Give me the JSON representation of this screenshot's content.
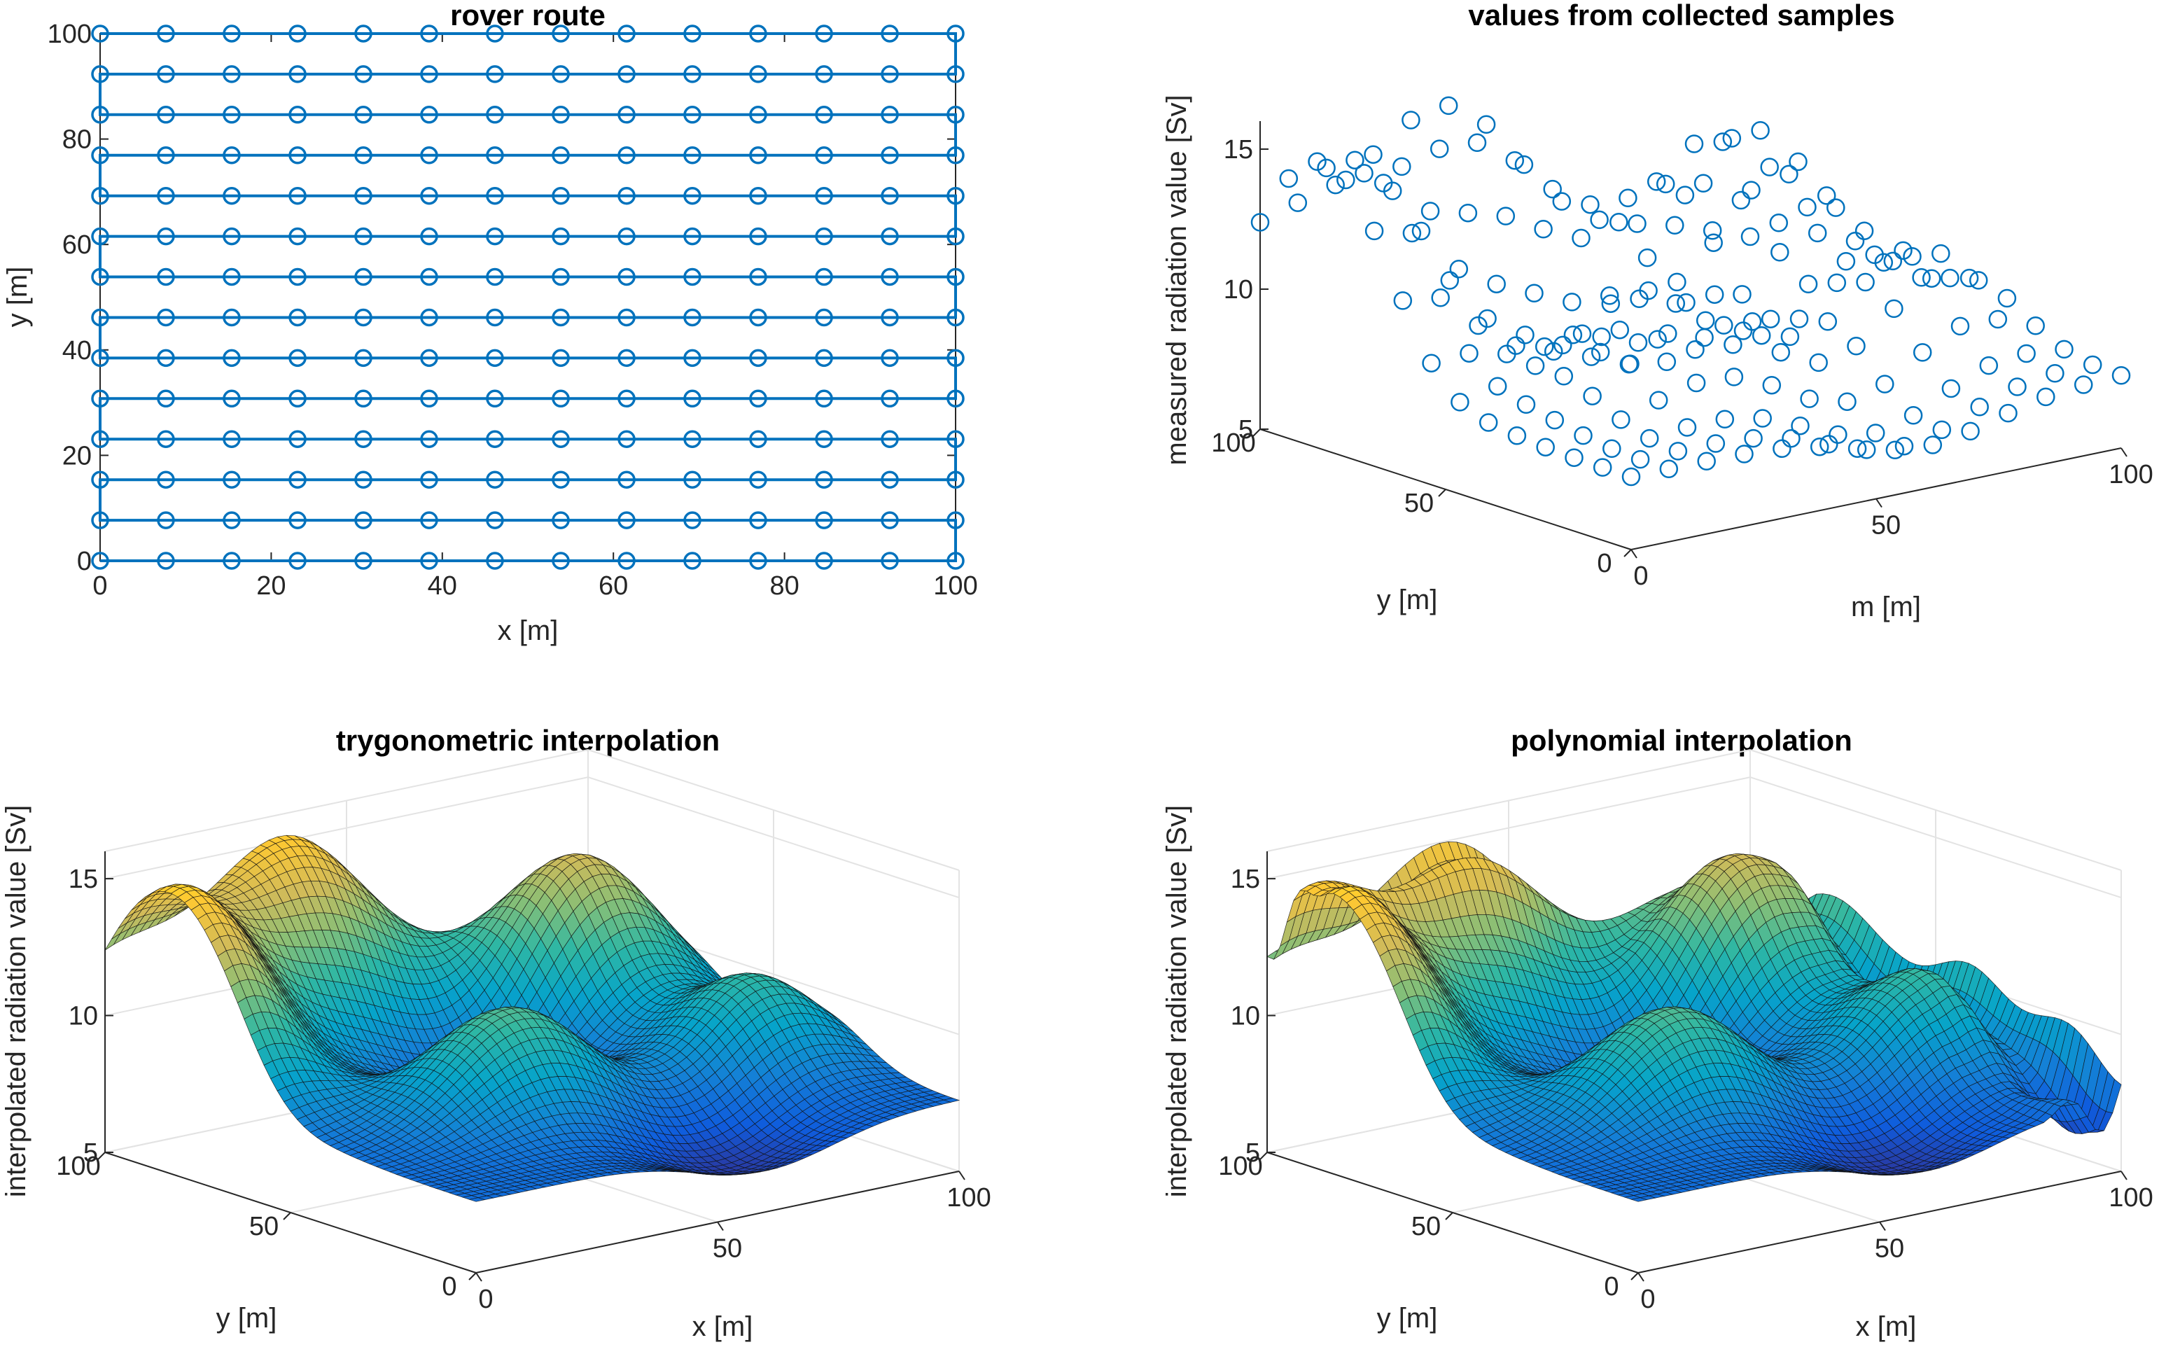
{
  "chart_data": [
    {
      "id": "rover-route",
      "type": "line",
      "title": "rover route",
      "xlabel": "x [m]",
      "ylabel": "y [m]",
      "xlim": [
        0,
        100
      ],
      "ylim": [
        0,
        100
      ],
      "xticks": [
        0,
        20,
        40,
        60,
        80,
        100
      ],
      "yticks": [
        0,
        20,
        40,
        60,
        80,
        100
      ],
      "grid": false,
      "marker": "circle",
      "color": "#0072BD",
      "series": [
        {
          "x": [
            0,
            7.69,
            15.38,
            23.08,
            30.77,
            38.46,
            46.15,
            53.85,
            61.54,
            69.23,
            76.92,
            84.62,
            92.31,
            100
          ],
          "y_rows": [
            0,
            7.69,
            15.38,
            23.08,
            30.77,
            38.46,
            46.15,
            53.85,
            61.54,
            69.23,
            76.92,
            84.62,
            92.31,
            100
          ],
          "path": "serpentine"
        }
      ]
    },
    {
      "id": "collected-samples",
      "type": "scatter",
      "title": "values from collected samples",
      "xlabel": "m [m]",
      "ylabel": "y [m]",
      "zlabel": "measured radiation value [Sv]",
      "xlim": [
        0,
        100
      ],
      "ylim": [
        0,
        100
      ],
      "zlim": [
        5,
        16
      ],
      "xticks": [
        0,
        50,
        100
      ],
      "yticks": [
        0,
        50,
        100
      ],
      "zticks": [
        5,
        10,
        15
      ],
      "view": "3d",
      "marker": "circle-open",
      "color": "#0072BD",
      "grid_n": 14,
      "values_note": "z = radiation measured at each route sample point (14 x 14 grid)"
    },
    {
      "id": "trig-interp",
      "type": "surface",
      "title": "trygonometric interpolation",
      "xlabel": "x [m]",
      "ylabel": "y [m]",
      "zlabel": "interpolated radiation value [Sv]",
      "xlim": [
        0,
        100
      ],
      "ylim": [
        0,
        100
      ],
      "zlim": [
        5,
        16
      ],
      "xticks": [
        0,
        50,
        100
      ],
      "yticks": [
        0,
        50,
        100
      ],
      "zticks": [
        5,
        10,
        15
      ],
      "view": "3d",
      "colormap": "parula"
    },
    {
      "id": "poly-interp",
      "type": "surface",
      "title": "polynomial interpolation",
      "xlabel": "x [m]",
      "ylabel": "y [m]",
      "zlabel": "interpolated radiation value [Sv]",
      "xlim": [
        0,
        100
      ],
      "ylim": [
        0,
        100
      ],
      "zlim": [
        5,
        16
      ],
      "xticks": [
        0,
        50,
        100
      ],
      "yticks": [
        0,
        50,
        100
      ],
      "zticks": [
        5,
        10,
        15
      ],
      "view": "3d",
      "colormap": "parula"
    }
  ],
  "colormap_parula": [
    "#352a87",
    "#0f5cdd",
    "#1481d6",
    "#06a4ca",
    "#2eb7a4",
    "#87bf77",
    "#d1bb59",
    "#fec832",
    "#f9fb0e"
  ]
}
